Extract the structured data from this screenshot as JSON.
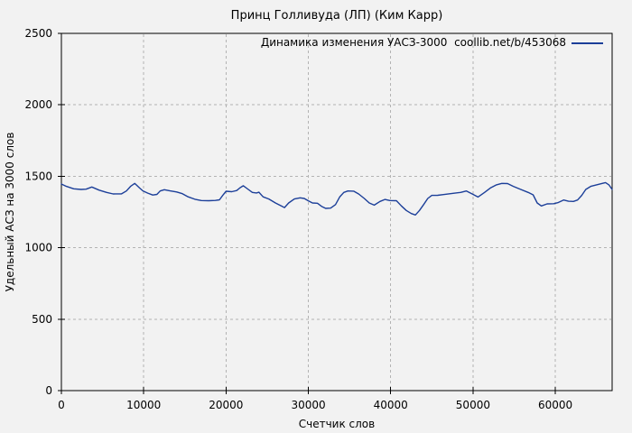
{
  "colors": {
    "line": "#1c3f99",
    "grid": "#b3b3b3",
    "axis": "#000000",
    "background": "#f2f2f2",
    "text": "#000000"
  },
  "chart_data": {
    "type": "line",
    "title": "Принц Голливуда (ЛП) (Ким Карр)",
    "xlabel": "Счетчик слов",
    "ylabel": "Удельный АСЗ на 3000 слов",
    "xlim": [
      0,
      66900
    ],
    "ylim": [
      0,
      2500
    ],
    "xticks": [
      0,
      10000,
      20000,
      30000,
      40000,
      50000,
      60000
    ],
    "yticks": [
      0,
      500,
      1000,
      1500,
      2000,
      2500
    ],
    "grid": true,
    "grid_style": "dashed",
    "legend_position": "top-right-inside",
    "series": [
      {
        "name": "Динамика изменения УАСЗ-3000  coollib.net/b/453068",
        "color": "#1c3f99",
        "points": [
          [
            0,
            1446
          ],
          [
            600,
            1429
          ],
          [
            1500,
            1412
          ],
          [
            2400,
            1408
          ],
          [
            3000,
            1410
          ],
          [
            3700,
            1425
          ],
          [
            4600,
            1403
          ],
          [
            5500,
            1387
          ],
          [
            6300,
            1376
          ],
          [
            7300,
            1377
          ],
          [
            7900,
            1397
          ],
          [
            8400,
            1429
          ],
          [
            8900,
            1450
          ],
          [
            9500,
            1418
          ],
          [
            9900,
            1398
          ],
          [
            10500,
            1382
          ],
          [
            11100,
            1369
          ],
          [
            11600,
            1373
          ],
          [
            12000,
            1397
          ],
          [
            12500,
            1406
          ],
          [
            13200,
            1398
          ],
          [
            14000,
            1390
          ],
          [
            14700,
            1378
          ],
          [
            15400,
            1356
          ],
          [
            16300,
            1338
          ],
          [
            17000,
            1330
          ],
          [
            17900,
            1329
          ],
          [
            18700,
            1331
          ],
          [
            19200,
            1335
          ],
          [
            19600,
            1366
          ],
          [
            20000,
            1395
          ],
          [
            20700,
            1392
          ],
          [
            21300,
            1400
          ],
          [
            21700,
            1420
          ],
          [
            22100,
            1434
          ],
          [
            22700,
            1408
          ],
          [
            23200,
            1387
          ],
          [
            23700,
            1383
          ],
          [
            24000,
            1388
          ],
          [
            24500,
            1356
          ],
          [
            25200,
            1341
          ],
          [
            26000,
            1313
          ],
          [
            26700,
            1292
          ],
          [
            27100,
            1281
          ],
          [
            27600,
            1313
          ],
          [
            28300,
            1341
          ],
          [
            29000,
            1349
          ],
          [
            29500,
            1345
          ],
          [
            30000,
            1328
          ],
          [
            30500,
            1313
          ],
          [
            31100,
            1311
          ],
          [
            31600,
            1290
          ],
          [
            32100,
            1275
          ],
          [
            32700,
            1277
          ],
          [
            33300,
            1302
          ],
          [
            33800,
            1355
          ],
          [
            34300,
            1387
          ],
          [
            34800,
            1397
          ],
          [
            35500,
            1396
          ],
          [
            36100,
            1376
          ],
          [
            36800,
            1345
          ],
          [
            37400,
            1313
          ],
          [
            38000,
            1298
          ],
          [
            38700,
            1324
          ],
          [
            39300,
            1338
          ],
          [
            39900,
            1330
          ],
          [
            40700,
            1329
          ],
          [
            41300,
            1292
          ],
          [
            41900,
            1261
          ],
          [
            42500,
            1239
          ],
          [
            43000,
            1229
          ],
          [
            43500,
            1261
          ],
          [
            44000,
            1302
          ],
          [
            44500,
            1345
          ],
          [
            45000,
            1366
          ],
          [
            45700,
            1367
          ],
          [
            46400,
            1372
          ],
          [
            47700,
            1381
          ],
          [
            48500,
            1387
          ],
          [
            49200,
            1397
          ],
          [
            49900,
            1376
          ],
          [
            50600,
            1355
          ],
          [
            51400,
            1387
          ],
          [
            52100,
            1418
          ],
          [
            52800,
            1439
          ],
          [
            53500,
            1450
          ],
          [
            54200,
            1449
          ],
          [
            54900,
            1429
          ],
          [
            55800,
            1408
          ],
          [
            56700,
            1387
          ],
          [
            57300,
            1370
          ],
          [
            57800,
            1313
          ],
          [
            58300,
            1292
          ],
          [
            59000,
            1307
          ],
          [
            59800,
            1308
          ],
          [
            60300,
            1315
          ],
          [
            61000,
            1334
          ],
          [
            61600,
            1325
          ],
          [
            62200,
            1324
          ],
          [
            62700,
            1334
          ],
          [
            63200,
            1366
          ],
          [
            63700,
            1408
          ],
          [
            64300,
            1429
          ],
          [
            65000,
            1440
          ],
          [
            65700,
            1450
          ],
          [
            66100,
            1456
          ],
          [
            66500,
            1440
          ],
          [
            66900,
            1408
          ]
        ]
      }
    ]
  }
}
